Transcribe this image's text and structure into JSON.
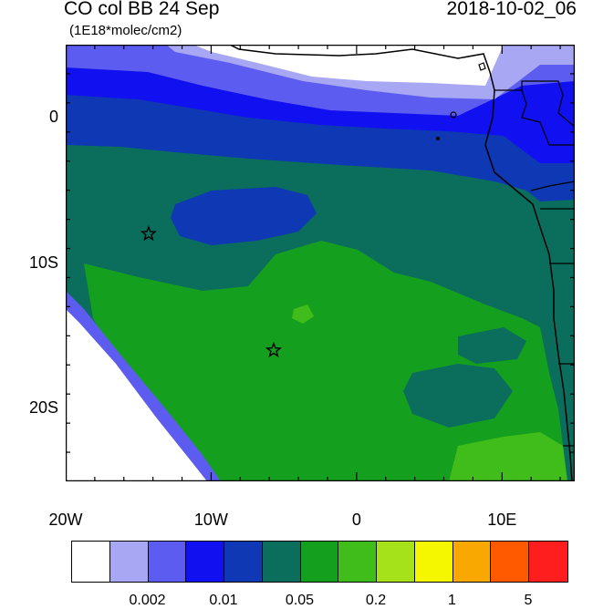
{
  "header": {
    "title": "CO col BB 24 Sep",
    "timestamp": "2018-10-02_06",
    "units": "(1E18*molec/cm2)"
  },
  "axes": {
    "x_ticks": [
      "20W",
      "10W",
      "0",
      "10E"
    ],
    "y_ticks": [
      "0",
      "10S",
      "20S"
    ]
  },
  "map": {
    "lon_range": [
      -20,
      15
    ],
    "lat_range": [
      -25,
      5
    ],
    "markers": [
      {
        "name": "star",
        "lon": -14.3,
        "lat": -8.0
      },
      {
        "name": "star",
        "lon": -5.7,
        "lat": -16.0
      }
    ]
  },
  "colorbar": {
    "colors": [
      "#ffffff",
      "#a7a7f3",
      "#5c5cf0",
      "#1010f0",
      "#0e38b4",
      "#0b6e5c",
      "#14a01e",
      "#40bd1a",
      "#a6e21a",
      "#f4f700",
      "#f8a800",
      "#ff5a00",
      "#ff1e1e"
    ],
    "labels": [
      "0.002",
      "0.01",
      "0.05",
      "0.2",
      "1",
      "5"
    ]
  }
}
